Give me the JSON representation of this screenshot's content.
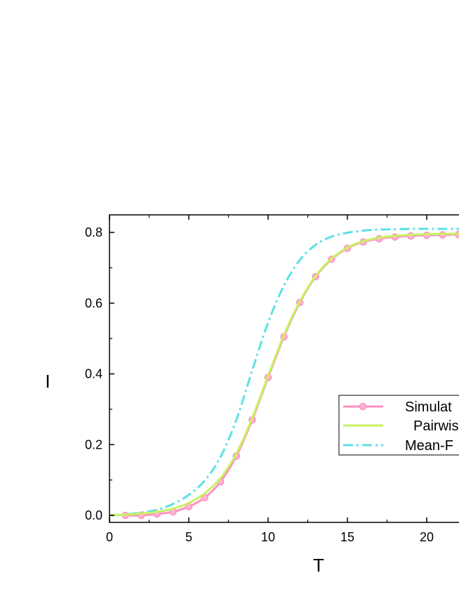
{
  "chart_data": {
    "type": "line",
    "title": "",
    "xlabel": "T",
    "ylabel": "I",
    "xlim": [
      0,
      25
    ],
    "ylim": [
      -0.02,
      0.85
    ],
    "x_ticks": [
      0,
      5,
      10,
      15,
      20
    ],
    "y_ticks": [
      0.0,
      0.2,
      0.4,
      0.6,
      0.8
    ],
    "x_tick_labels": [
      "0",
      "5",
      "10",
      "15",
      "20"
    ],
    "y_tick_labels": [
      "0.0",
      "0.2",
      "0.4",
      "0.6",
      "0.8"
    ],
    "grid": false,
    "legend_position": "center-right",
    "series": [
      {
        "name": "Simulation",
        "legend_label": "Simulat",
        "style": "solid-with-circle-markers",
        "color": "#ff8fc0",
        "x": [
          1,
          2,
          3,
          4,
          5,
          6,
          7,
          8,
          9,
          10,
          11,
          12,
          13,
          14,
          15,
          16,
          17,
          18,
          19,
          20,
          21,
          22,
          23,
          24,
          25
        ],
        "y": [
          0.0,
          0.0,
          0.004,
          0.01,
          0.025,
          0.05,
          0.095,
          0.168,
          0.27,
          0.39,
          0.505,
          0.602,
          0.675,
          0.724,
          0.755,
          0.773,
          0.782,
          0.787,
          0.79,
          0.792,
          0.793,
          0.794,
          0.794,
          0.794,
          0.794
        ]
      },
      {
        "name": "Pairwise",
        "legend_label": "Pairwis",
        "style": "solid",
        "color": "#c8f262",
        "x": [
          0,
          1,
          2,
          3,
          4,
          5,
          6,
          7,
          8,
          9,
          10,
          11,
          12,
          13,
          14,
          15,
          16,
          17,
          18,
          19,
          20,
          21,
          22,
          23,
          24,
          25
        ],
        "y": [
          0.0,
          0.002,
          0.005,
          0.01,
          0.019,
          0.035,
          0.062,
          0.105,
          0.175,
          0.275,
          0.395,
          0.51,
          0.605,
          0.677,
          0.726,
          0.757,
          0.775,
          0.785,
          0.79,
          0.793,
          0.795,
          0.796,
          0.796,
          0.797,
          0.797,
          0.797
        ]
      },
      {
        "name": "Mean-Field",
        "legend_label": "Mean-F",
        "style": "dash-dot",
        "color": "#5ce1e6",
        "x": [
          0,
          1,
          2,
          3,
          4,
          5,
          6,
          7,
          8,
          9,
          10,
          11,
          12,
          13,
          14,
          15,
          16,
          17,
          18,
          19,
          20,
          21,
          22,
          23,
          24,
          25
        ],
        "y": [
          0.0,
          0.003,
          0.008,
          0.016,
          0.032,
          0.058,
          0.098,
          0.165,
          0.27,
          0.41,
          0.545,
          0.65,
          0.722,
          0.765,
          0.788,
          0.799,
          0.805,
          0.808,
          0.809,
          0.81,
          0.81,
          0.81,
          0.81,
          0.81,
          0.81,
          0.81
        ]
      }
    ]
  }
}
